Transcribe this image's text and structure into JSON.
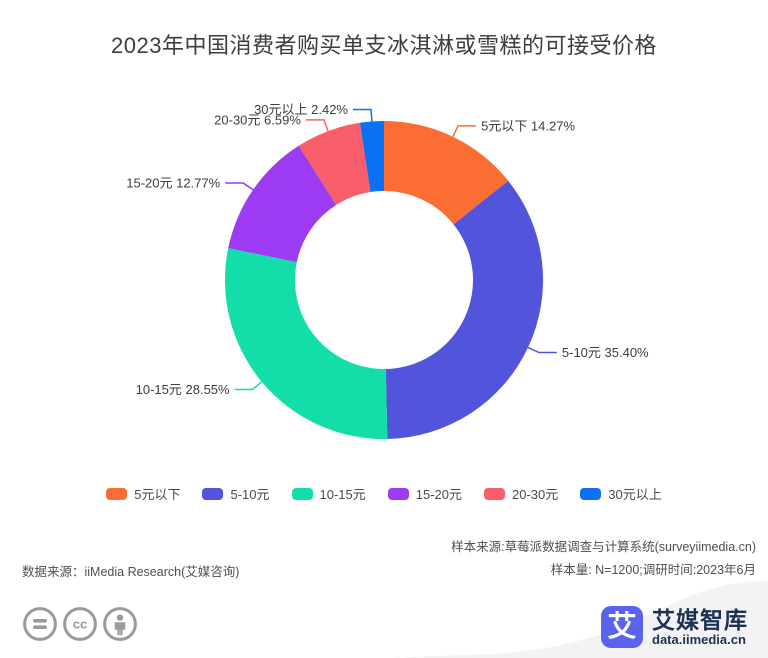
{
  "title": "2023年中国消费者购买单支冰淇淋或雪糕的可接受价格",
  "chart_data": {
    "type": "pie",
    "subtype": "donut",
    "title": "2023年中国消费者购买单支冰淇淋或雪糕的可接受价格",
    "categories": [
      "5元以下",
      "5-10元",
      "10-15元",
      "15-20元",
      "20-30元",
      "30元以上"
    ],
    "values": [
      14.27,
      35.4,
      28.55,
      12.77,
      6.59,
      2.42
    ],
    "unit": "%",
    "label_format": "{name} {value}%",
    "slice_labels": [
      "5元以下 14.27%",
      "5-10元 35.40%",
      "10-15元 28.55%",
      "15-20元 12.77%",
      "20-30元 6.59%",
      "30元以上 2.42%"
    ],
    "colors": [
      "#FA6E34",
      "#5254DC",
      "#13DEA9",
      "#9D3BF3",
      "#F95F6B",
      "#0C70F2"
    ],
    "start_angle": "top",
    "direction": "clockwise",
    "inner_radius_ratio": 0.56,
    "legend_position": "bottom",
    "legend_labels": [
      "5元以下",
      "5-10元",
      "10-15元",
      "15-20元",
      "20-30元",
      "30元以上"
    ]
  },
  "footer": {
    "data_source": "数据来源：iiMedia Research(艾媒咨询)",
    "sample_source": "样本来源:草莓派数据调查与计算系统(surveyiimedia.cn)",
    "sample_info": "样本量: N=1200;调研时间:2023年6月"
  },
  "branding": {
    "logo_glyph": "艾",
    "brand_name": "艾媒智库",
    "brand_url": "data.iimedia.cn",
    "brand_color": "#5A63EE",
    "brand_text_color": "#1D3150",
    "swoosh_color": "#F3F3F5",
    "license_icon_color": "#9B9B9B"
  }
}
